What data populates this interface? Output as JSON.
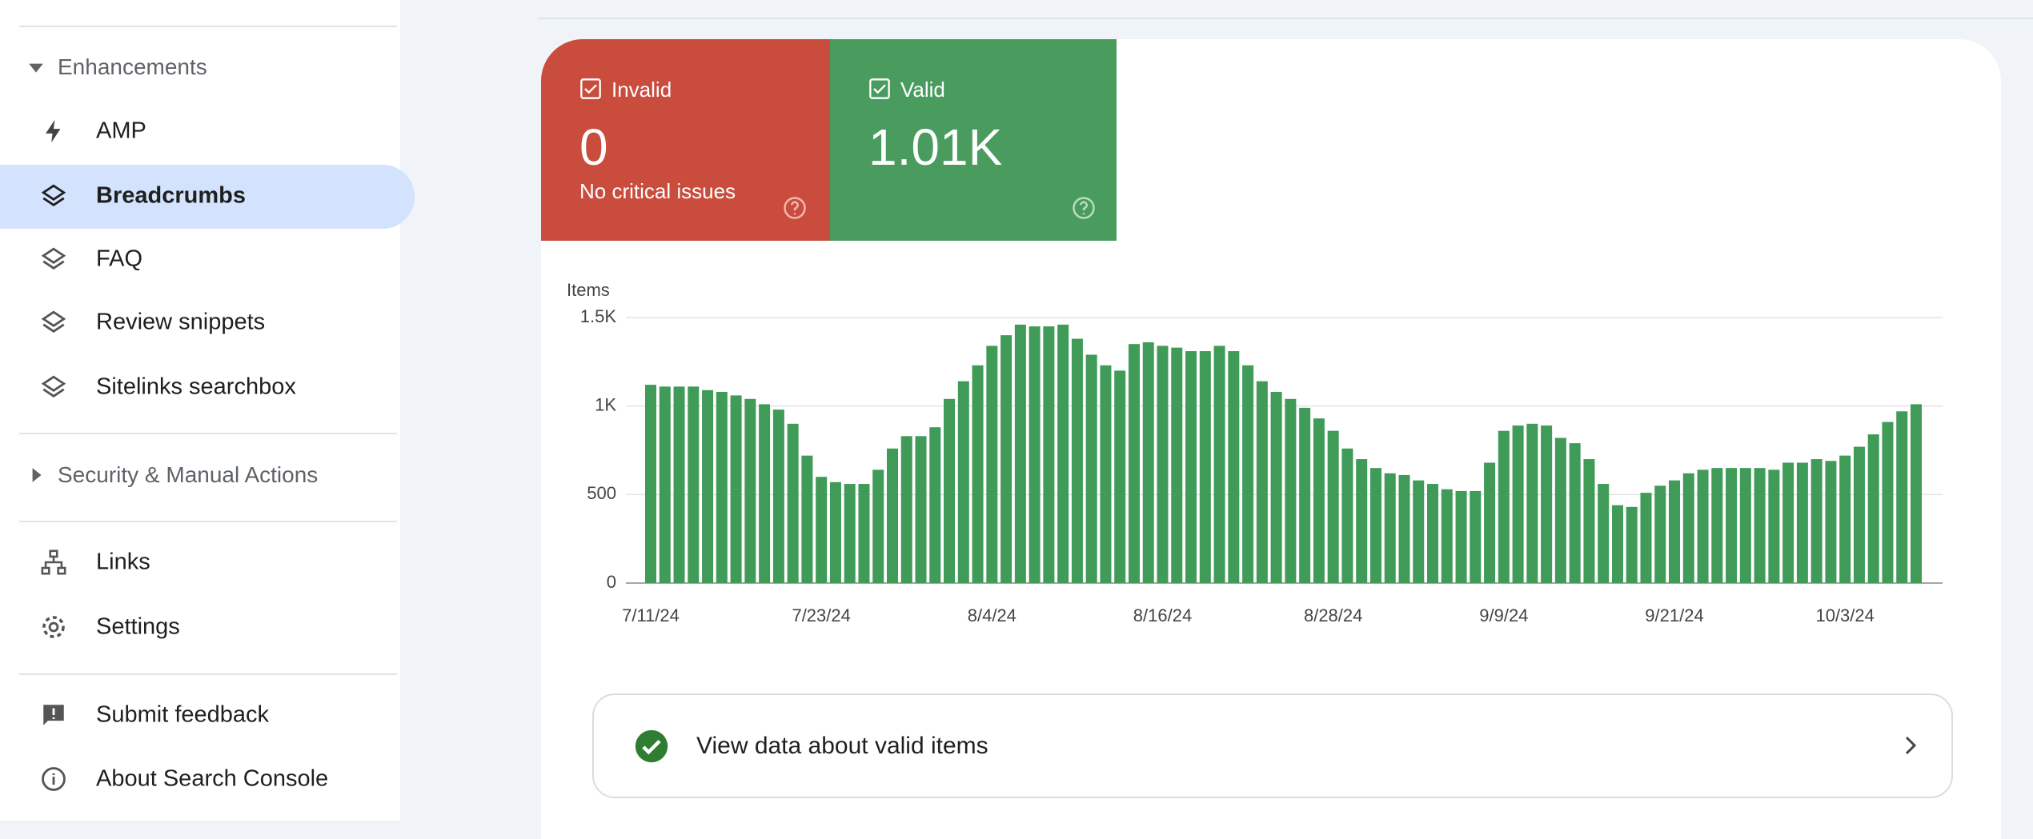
{
  "nav": {
    "section_enhancements": "Enhancements",
    "items": [
      "AMP",
      "Breadcrumbs",
      "FAQ",
      "Review snippets",
      "Sitelinks searchbox"
    ],
    "section_security": "Security & Manual Actions",
    "links": "Links",
    "settings": "Settings",
    "feedback": "Submit feedback",
    "about": "About Search Console"
  },
  "summary": {
    "invalid": {
      "label": "Invalid",
      "value": "0",
      "note": "No critical issues"
    },
    "valid": {
      "label": "Valid",
      "value": "1.01K"
    }
  },
  "action": "View data about valid items",
  "chart_data": {
    "type": "bar",
    "ylabel": "Items",
    "color": "#3f9b57",
    "categories": [
      "7/11/24",
      null,
      null,
      null,
      null,
      null,
      null,
      null,
      null,
      null,
      null,
      null,
      "7/23/24",
      null,
      null,
      null,
      null,
      null,
      null,
      null,
      null,
      null,
      null,
      null,
      "8/4/24",
      null,
      null,
      null,
      null,
      null,
      null,
      null,
      null,
      null,
      null,
      null,
      "8/16/24",
      null,
      null,
      null,
      null,
      null,
      null,
      null,
      null,
      null,
      null,
      null,
      "8/28/24",
      null,
      null,
      null,
      null,
      null,
      null,
      null,
      null,
      null,
      null,
      null,
      "9/9/24",
      null,
      null,
      null,
      null,
      null,
      null,
      null,
      null,
      null,
      null,
      null,
      "9/21/24",
      null,
      null,
      null,
      null,
      null,
      null,
      null,
      null,
      null,
      null,
      null,
      "10/3/24",
      null,
      null,
      null,
      null,
      null
    ],
    "values": [
      1120,
      1110,
      1110,
      1110,
      1090,
      1080,
      1060,
      1040,
      1010,
      980,
      900,
      720,
      600,
      570,
      560,
      560,
      640,
      760,
      830,
      830,
      880,
      1040,
      1140,
      1230,
      1340,
      1400,
      1460,
      1450,
      1450,
      1460,
      1380,
      1290,
      1230,
      1200,
      1350,
      1360,
      1340,
      1330,
      1310,
      1310,
      1340,
      1310,
      1230,
      1140,
      1080,
      1040,
      990,
      930,
      860,
      760,
      700,
      650,
      620,
      610,
      580,
      560,
      530,
      520,
      520,
      680,
      860,
      890,
      900,
      890,
      820,
      790,
      700,
      560,
      440,
      430,
      510,
      550,
      580,
      620,
      640,
      650,
      650,
      650,
      650,
      640,
      680,
      680,
      700,
      690,
      720,
      770,
      840,
      910,
      970,
      1010
    ],
    "ylim": [
      0,
      1500
    ],
    "yticks": [
      0,
      500,
      {
        "value": 1000,
        "label": "1K"
      },
      {
        "value": 1500,
        "label": "1.5K"
      }
    ],
    "grid": true
  }
}
